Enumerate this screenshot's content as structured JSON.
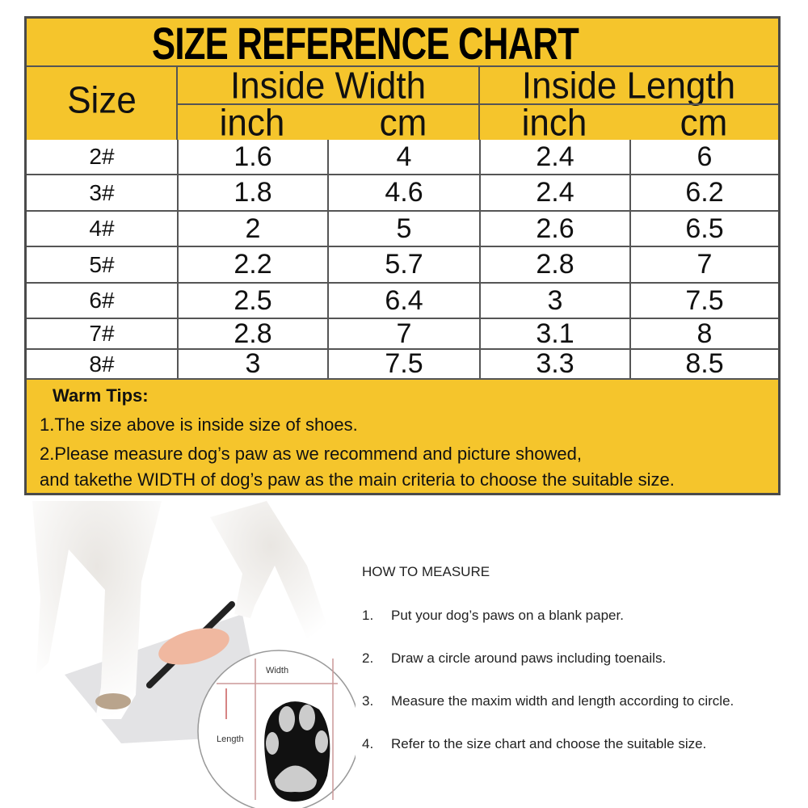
{
  "title": "SIZE REFERENCE CHART",
  "headers": {
    "size": "Size",
    "inside_width": "Inside Width",
    "inside_length": "Inside Length",
    "units": [
      "inch",
      "cm",
      "inch",
      "cm"
    ]
  },
  "rows": [
    [
      "2#",
      "1.6",
      "4",
      "2.4",
      "6"
    ],
    [
      "3#",
      "1.8",
      "4.6",
      "2.4",
      "6.2"
    ],
    [
      "4#",
      "2",
      "5",
      "2.6",
      "6.5"
    ],
    [
      "5#",
      "2.2",
      "5.7",
      "2.8",
      "7"
    ],
    [
      "6#",
      "2.5",
      "6.4",
      "3",
      "7.5"
    ],
    [
      "7#",
      "2.8",
      "7",
      "3.1",
      "8"
    ],
    [
      "8#",
      "3",
      "7.5",
      "3.3",
      "8.5"
    ]
  ],
  "tips": {
    "heading": "Warm Tips:",
    "line1": "1.The size above is inside size of shoes.",
    "line2": "2.Please measure dog’s paw as we recommend and picture showed,",
    "line3": "and takethe WIDTH of dog’s paw as the main criteria to choose the suitable size."
  },
  "illustration": {
    "width_label": "Width",
    "length_label": "Length"
  },
  "how_to_measure": {
    "heading": "HOW TO MEASURE",
    "steps": [
      {
        "num": "1.",
        "text": "Put your dog’s paws on a blank paper."
      },
      {
        "num": "2.",
        "text": "Draw a circle around paws including toenails."
      },
      {
        "num": "3.",
        "text": "Measure the maxim width and length according to circle."
      },
      {
        "num": "4.",
        "text": "Refer to the size chart and choose the suitable size."
      }
    ]
  },
  "colors": {
    "header_yellow": "#f5c52c",
    "border": "#4a4a4a"
  }
}
